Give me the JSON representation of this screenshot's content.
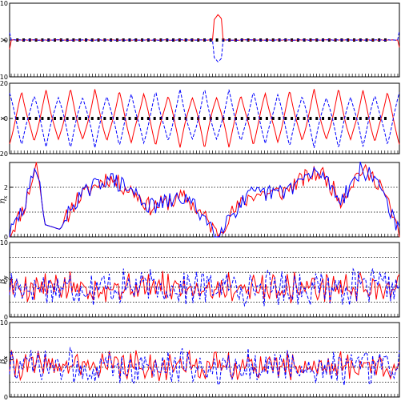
{
  "chart_data": [
    {
      "type": "line",
      "ylabel": "y",
      "ylim": [
        -10,
        10
      ],
      "yticks": [
        -10,
        0,
        10
      ],
      "ref_lines": [],
      "series": [
        {
          "color": "#ff0000",
          "style": "solid",
          "shape": "flat_with_spike",
          "base": 0.0,
          "amp": 0.15,
          "spike": 7.0,
          "start": -2.5,
          "end": -2.0
        },
        {
          "color": "#0000ff",
          "style": "dashed",
          "shape": "flat_with_spike",
          "base": 0.0,
          "amp": 0.15,
          "spike": -6.0,
          "start": 2.0,
          "end": 2.5
        }
      ],
      "marker_band": {
        "color": "#000000",
        "at": 0
      }
    },
    {
      "type": "line",
      "ylabel": "x",
      "ylim": [
        -20,
        20
      ],
      "yticks": [
        -20,
        0,
        20
      ],
      "ref_lines": [],
      "series": [
        {
          "color": "#ff0000",
          "style": "solid",
          "shape": "triangle",
          "amp": 17,
          "periods": 16,
          "phase": 0.0
        },
        {
          "color": "#0000ff",
          "style": "dashed",
          "shape": "triangle",
          "amp": 17,
          "periods": 16,
          "phase": 0.5
        }
      ],
      "marker_band": {
        "color": "#000000",
        "at": 0
      }
    },
    {
      "type": "line",
      "ylabel": "η",
      "ylabel_sub": "x",
      "ylim": [
        0,
        3
      ],
      "yticks": [
        0,
        2
      ],
      "ref_lines": [
        1,
        2,
        3
      ],
      "series": [
        {
          "color": "#ff0000",
          "style": "solid",
          "shape": "eta",
          "seed": 11
        },
        {
          "color": "#0000ff",
          "style": "solid",
          "shape": "eta",
          "seed": 29
        }
      ],
      "marker_band": null
    },
    {
      "type": "line",
      "ylabel": "β",
      "ylabel_sub": "y",
      "ylim": [
        0,
        10
      ],
      "yticks": [
        0,
        5,
        10
      ],
      "ref_lines": [
        2,
        4,
        6,
        8
      ],
      "series": [
        {
          "color": "#ff0000",
          "style": "solid",
          "shape": "beta",
          "center": 4.0,
          "spread": 1.6,
          "seed": 5
        },
        {
          "color": "#0000ff",
          "style": "dashed",
          "shape": "beta",
          "center": 4.0,
          "spread": 2.0,
          "seed": 17
        }
      ],
      "marker_band": null
    },
    {
      "type": "line",
      "ylabel": "β",
      "ylabel_sub": "x",
      "ylim": [
        0,
        10
      ],
      "yticks": [
        0,
        5,
        10
      ],
      "ref_lines": [
        2,
        4,
        6,
        8
      ],
      "series": [
        {
          "color": "#ff0000",
          "style": "solid",
          "shape": "beta",
          "center": 4.2,
          "spread": 1.5,
          "seed": 41
        },
        {
          "color": "#0000ff",
          "style": "dashed",
          "shape": "beta",
          "center": 4.0,
          "spread": 2.0,
          "seed": 73
        }
      ],
      "marker_band": null
    }
  ]
}
